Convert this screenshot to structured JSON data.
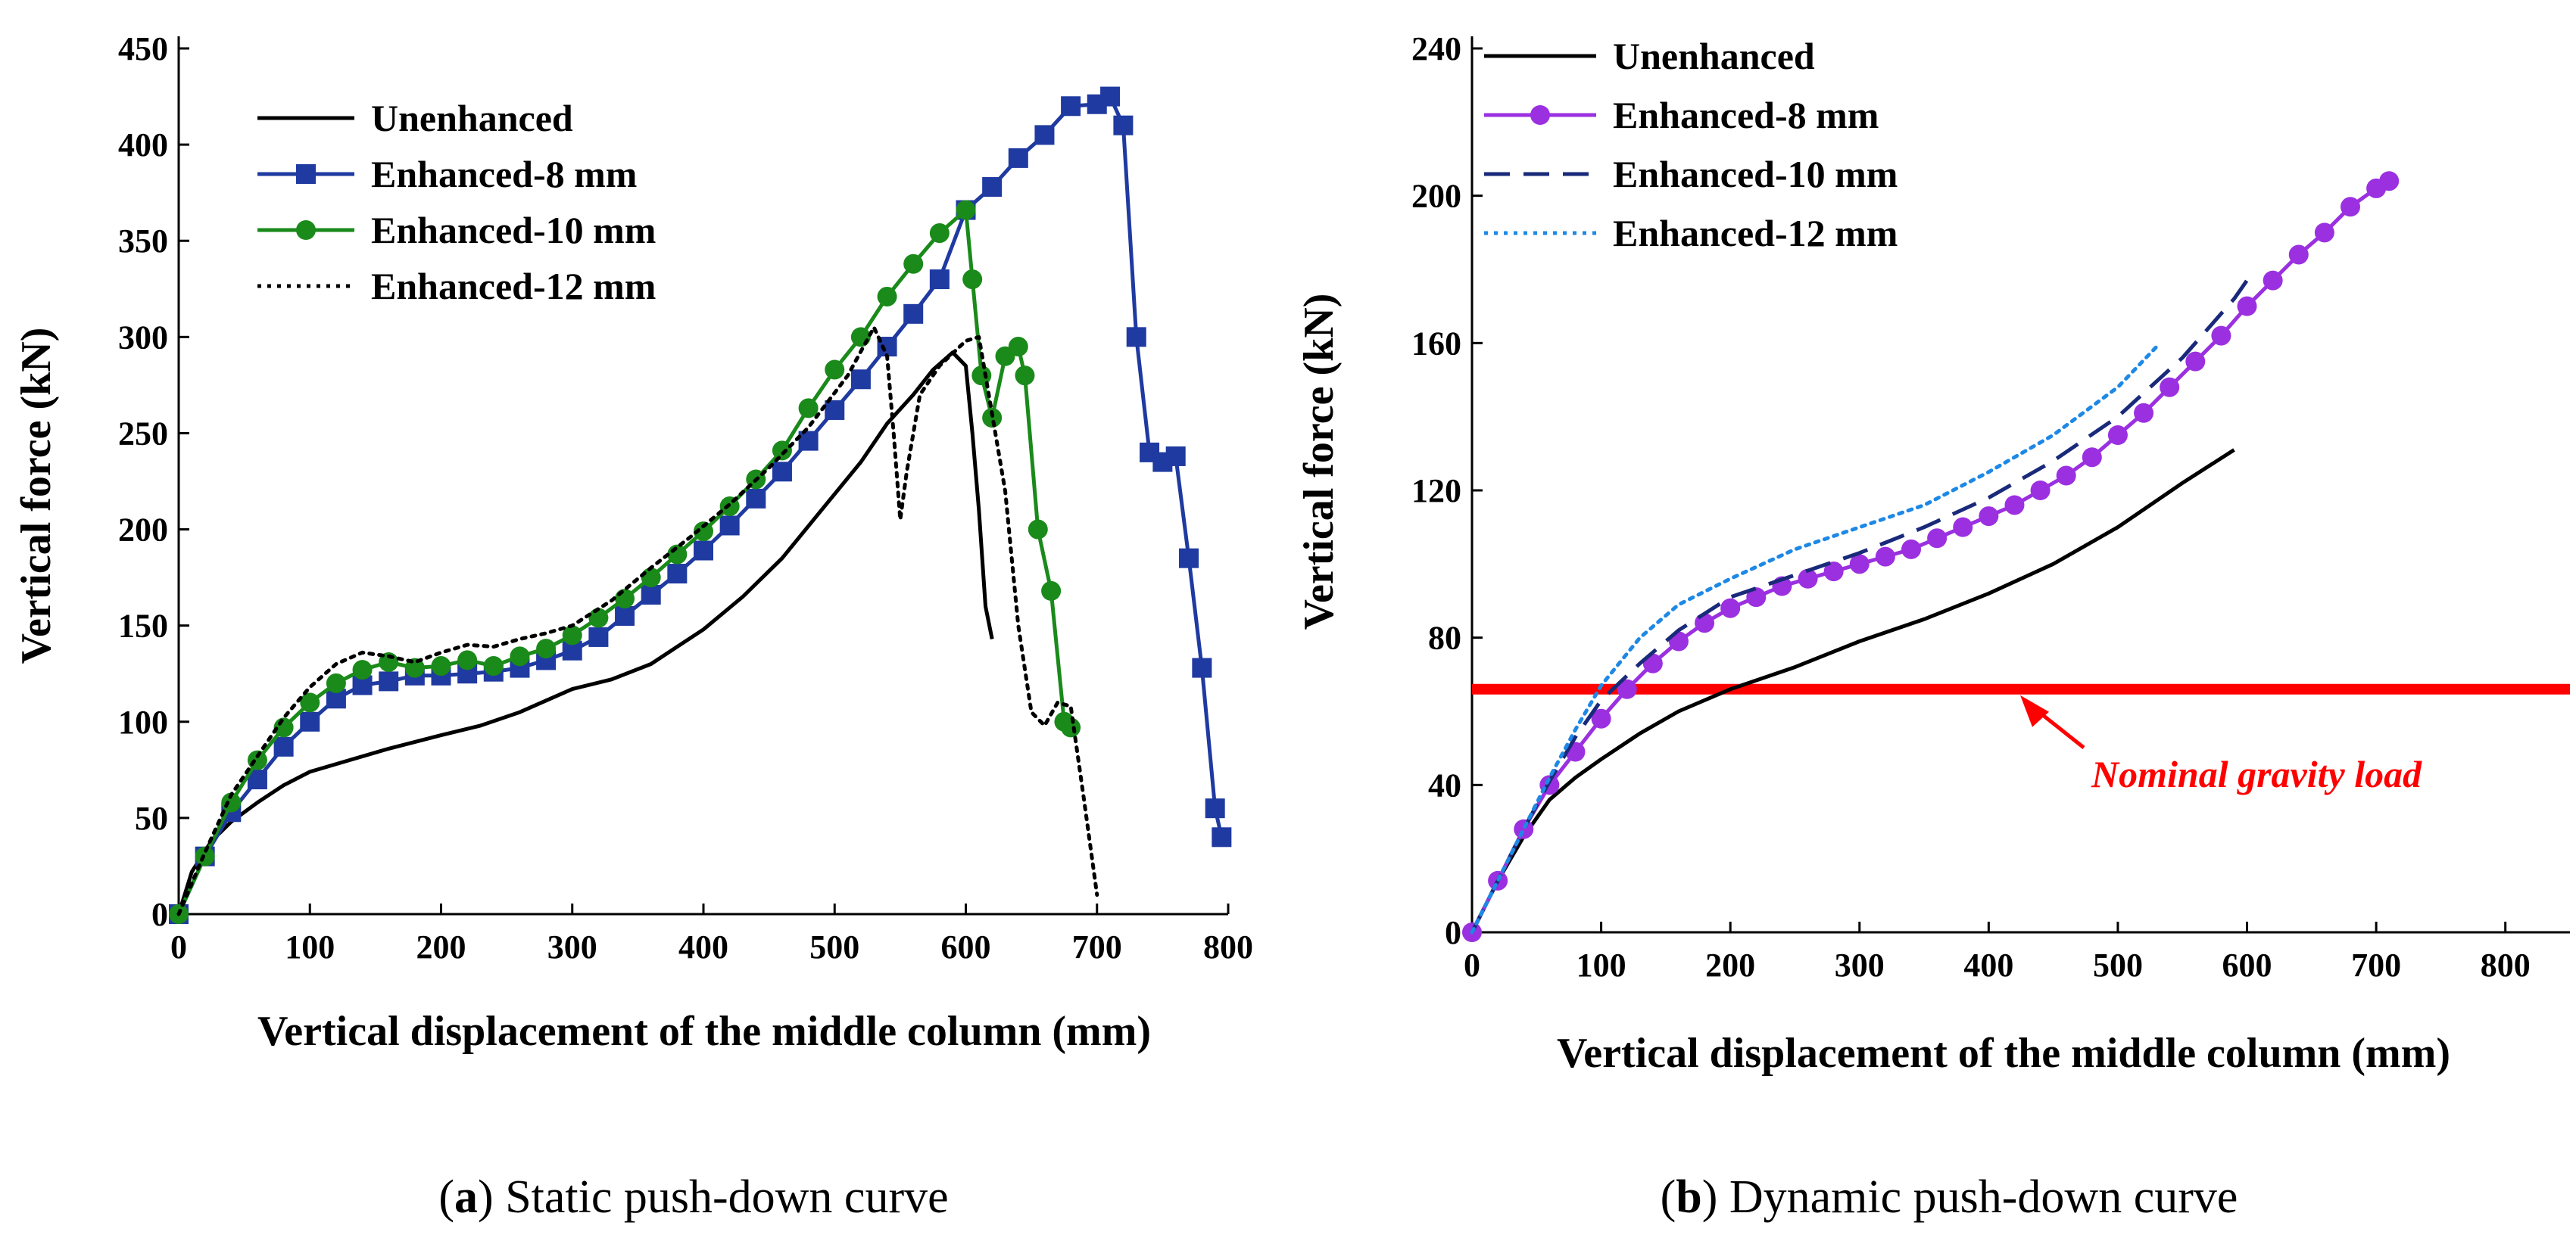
{
  "chart_data": [
    {
      "type": "line",
      "caption_letter": "a",
      "caption_text": "Static push-down curve",
      "xlabel": "Vertical displacement of the middle column (mm)",
      "ylabel": "Vertical force (kN)",
      "xlim": [
        0,
        800
      ],
      "ylim": [
        0,
        450
      ],
      "xticks": [
        "0",
        "100",
        "200",
        "300",
        "400",
        "500",
        "600",
        "700",
        "800"
      ],
      "yticks": [
        "0",
        "50",
        "100",
        "150",
        "200",
        "250",
        "300",
        "350",
        "400",
        "450"
      ],
      "legend_position": "top-left",
      "series": [
        {
          "name": "Unenhanced",
          "color": "#000000",
          "style": "solid",
          "marker": "none",
          "x": [
            0,
            10,
            25,
            40,
            60,
            80,
            100,
            130,
            160,
            200,
            230,
            260,
            300,
            330,
            360,
            400,
            430,
            460,
            490,
            520,
            540,
            560,
            575,
            590,
            600,
            605,
            610,
            615,
            620
          ],
          "y": [
            0,
            22,
            38,
            48,
            58,
            67,
            74,
            80,
            86,
            93,
            98,
            105,
            117,
            122,
            130,
            148,
            165,
            185,
            210,
            235,
            255,
            270,
            283,
            292,
            285,
            250,
            210,
            160,
            143
          ]
        },
        {
          "name": "Enhanced-8 mm",
          "color": "#1f3aa0",
          "style": "solid",
          "marker": "square",
          "x": [
            0,
            20,
            40,
            60,
            80,
            100,
            120,
            140,
            160,
            180,
            200,
            220,
            240,
            260,
            280,
            300,
            320,
            340,
            360,
            380,
            400,
            420,
            440,
            460,
            480,
            500,
            520,
            540,
            560,
            580,
            600,
            620,
            640,
            660,
            680,
            700,
            710,
            720,
            730,
            740,
            750,
            760,
            770,
            780,
            790,
            795
          ],
          "y": [
            0,
            30,
            53,
            70,
            87,
            100,
            112,
            119,
            121,
            124,
            124,
            125,
            126,
            128,
            132,
            137,
            144,
            155,
            166,
            177,
            189,
            202,
            216,
            230,
            246,
            262,
            278,
            295,
            312,
            330,
            366,
            378,
            393,
            405,
            420,
            421,
            425,
            410,
            300,
            240,
            235,
            238,
            185,
            128,
            55,
            40
          ],
          "marker_every": 1
        },
        {
          "name": "Enhanced-10 mm",
          "color": "#1a8a1a",
          "style": "solid",
          "marker": "circle",
          "x": [
            0,
            20,
            40,
            60,
            80,
            100,
            120,
            140,
            160,
            180,
            200,
            220,
            240,
            260,
            280,
            300,
            320,
            340,
            360,
            380,
            400,
            420,
            440,
            460,
            480,
            500,
            520,
            540,
            560,
            580,
            600,
            605,
            612,
            620,
            630,
            640,
            645,
            655,
            665,
            675,
            680
          ],
          "y": [
            0,
            30,
            58,
            80,
            97,
            110,
            120,
            127,
            131,
            128,
            129,
            132,
            129,
            134,
            138,
            145,
            154,
            164,
            175,
            187,
            199,
            212,
            226,
            241,
            263,
            283,
            300,
            321,
            338,
            354,
            366,
            330,
            280,
            258,
            290,
            295,
            280,
            200,
            168,
            100,
            97
          ]
        },
        {
          "name": "Enhanced-12 mm",
          "color": "#000000",
          "style": "dotted",
          "marker": "none",
          "x": [
            0,
            20,
            40,
            60,
            80,
            100,
            120,
            140,
            160,
            180,
            200,
            220,
            240,
            260,
            280,
            300,
            330,
            360,
            390,
            420,
            450,
            480,
            510,
            530,
            540,
            545,
            550,
            555,
            565,
            580,
            600,
            610,
            620,
            630,
            640,
            650,
            660,
            670,
            680,
            690,
            700
          ],
          "y": [
            0,
            32,
            62,
            82,
            102,
            118,
            130,
            136,
            134,
            131,
            136,
            140,
            139,
            143,
            146,
            150,
            163,
            180,
            196,
            213,
            232,
            253,
            280,
            305,
            290,
            250,
            205,
            230,
            270,
            285,
            298,
            300,
            260,
            220,
            150,
            105,
            98,
            110,
            108,
            60,
            10
          ]
        }
      ]
    },
    {
      "type": "line",
      "caption_letter": "b",
      "caption_text": "Dynamic push-down curve",
      "xlabel": "Vertical displacement of the middle column (mm)",
      "ylabel": "Vertical force (kN)",
      "xlim": [
        0,
        850
      ],
      "ylim": [
        0,
        240
      ],
      "xticks": [
        "0",
        "100",
        "200",
        "300",
        "400",
        "500",
        "600",
        "700",
        "800"
      ],
      "yticks": [
        "0",
        "40",
        "80",
        "120",
        "160",
        "200",
        "240"
      ],
      "legend_position": "top-left",
      "series": [
        {
          "name": "Unenhanced",
          "color": "#000000",
          "style": "solid",
          "marker": "none",
          "x": [
            0,
            20,
            40,
            60,
            80,
            100,
            130,
            160,
            200,
            250,
            300,
            350,
            400,
            450,
            500,
            550,
            590
          ],
          "y": [
            0,
            14,
            26,
            36,
            42,
            47,
            54,
            60,
            66,
            72,
            79,
            85,
            92,
            100,
            110,
            122,
            131
          ]
        },
        {
          "name": "Enhanced-8 mm",
          "color": "#9b30e0",
          "style": "solid",
          "marker": "circle",
          "x": [
            0,
            20,
            40,
            60,
            80,
            100,
            120,
            140,
            160,
            180,
            200,
            220,
            240,
            260,
            280,
            300,
            320,
            340,
            360,
            380,
            400,
            420,
            440,
            460,
            480,
            500,
            520,
            540,
            560,
            580,
            600,
            620,
            640,
            660,
            680,
            700,
            710
          ],
          "y": [
            0,
            14,
            28,
            40,
            49,
            58,
            66,
            73,
            79,
            84,
            88,
            91,
            94,
            96,
            98,
            100,
            102,
            104,
            107,
            110,
            113,
            116,
            120,
            124,
            129,
            135,
            141,
            148,
            155,
            162,
            170,
            177,
            184,
            190,
            197,
            202,
            204
          ]
        },
        {
          "name": "Enhanced-10 mm",
          "color": "#1a2a7a",
          "style": "dashed",
          "marker": "none",
          "x": [
            0,
            20,
            40,
            60,
            80,
            100,
            130,
            160,
            200,
            250,
            300,
            350,
            400,
            450,
            500,
            550,
            570,
            590,
            600
          ],
          "y": [
            0,
            14,
            28,
            41,
            53,
            63,
            73,
            82,
            91,
            97,
            103,
            110,
            118,
            128,
            140,
            156,
            164,
            172,
            177
          ]
        },
        {
          "name": "Enhanced-12 mm",
          "color": "#1e88e5",
          "style": "dotted",
          "marker": "none",
          "x": [
            0,
            20,
            40,
            60,
            80,
            100,
            130,
            160,
            200,
            250,
            300,
            350,
            400,
            450,
            500,
            530
          ],
          "y": [
            0,
            14,
            28,
            42,
            55,
            67,
            80,
            89,
            96,
            104,
            110,
            116,
            125,
            135,
            148,
            159
          ]
        }
      ],
      "reference_line": {
        "y": 66,
        "color": "#ff0000",
        "label": "Nominal gravity load"
      }
    }
  ]
}
